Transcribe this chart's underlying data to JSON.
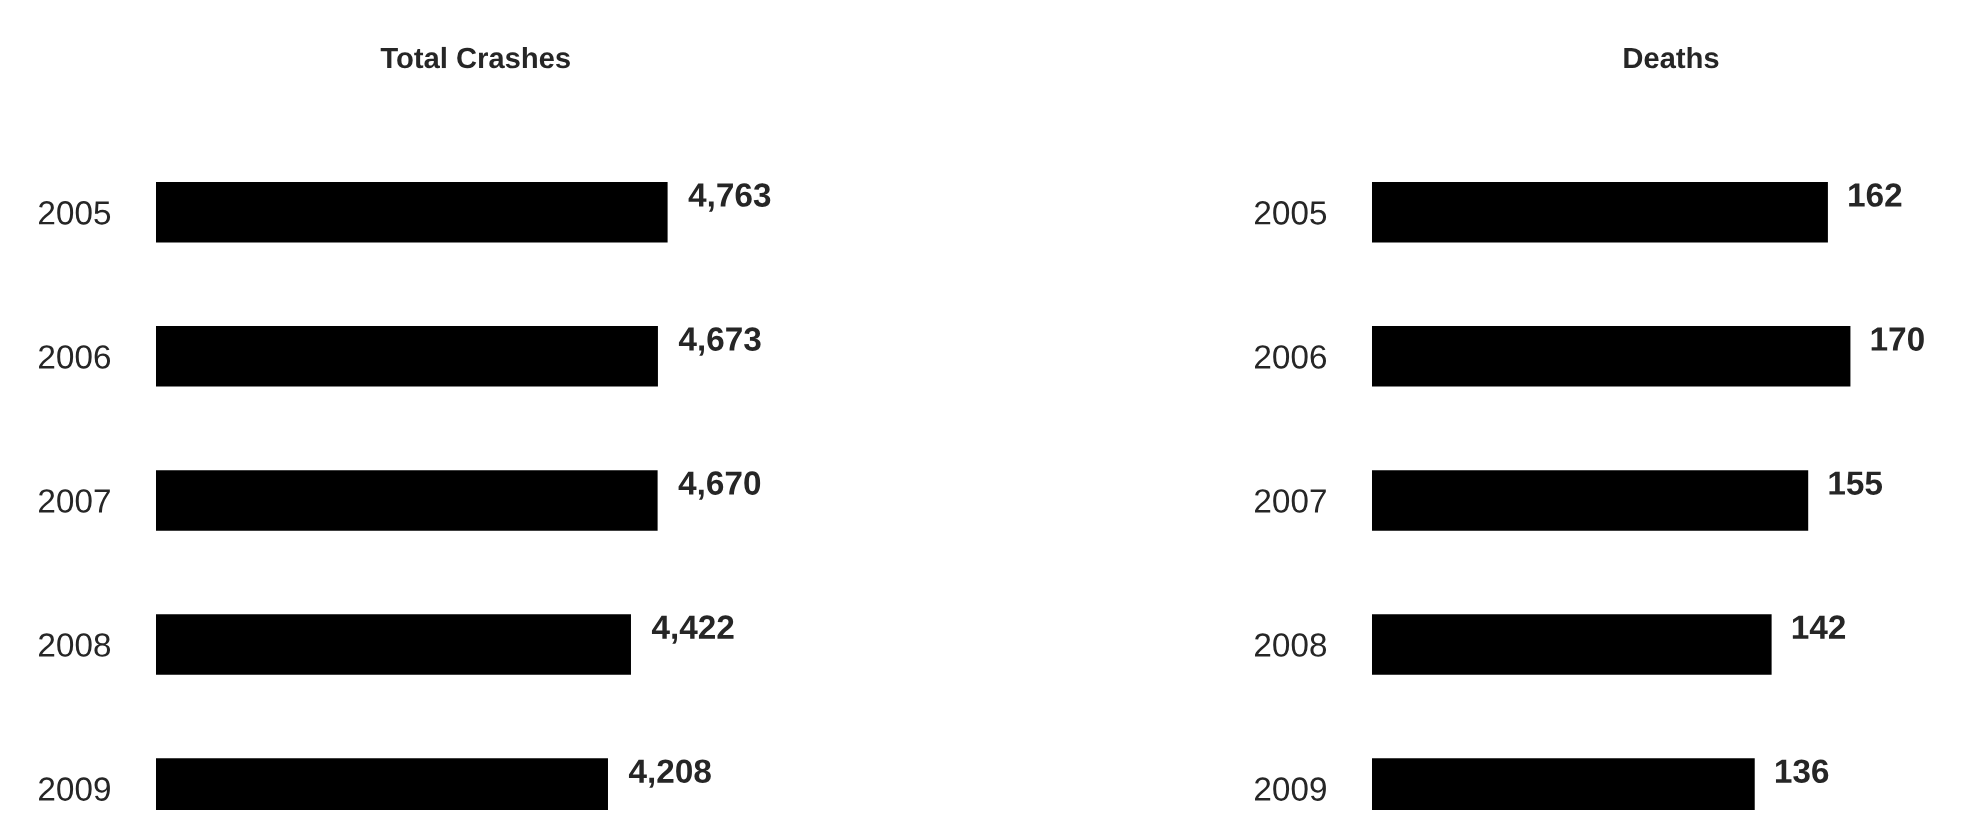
{
  "chart_data": [
    {
      "type": "bar",
      "orientation": "horizontal",
      "title": "Total Crashes",
      "categories": [
        "2005",
        "2006",
        "2007",
        "2008",
        "2009"
      ],
      "values": [
        4763,
        4673,
        4670,
        4422,
        4208
      ],
      "value_labels": [
        "4,763",
        "4,673",
        "4,670",
        "4,422",
        "4,208"
      ],
      "color": "#000000",
      "grid": false,
      "legend": false
    },
    {
      "type": "bar",
      "orientation": "horizontal",
      "title": "Deaths",
      "categories": [
        "2005",
        "2006",
        "2007",
        "2008",
        "2009"
      ],
      "values": [
        162,
        170,
        155,
        142,
        136
      ],
      "value_labels": [
        "162",
        "170",
        "155",
        "142",
        "136"
      ],
      "color": "#000000",
      "grid": false,
      "legend": false
    }
  ]
}
